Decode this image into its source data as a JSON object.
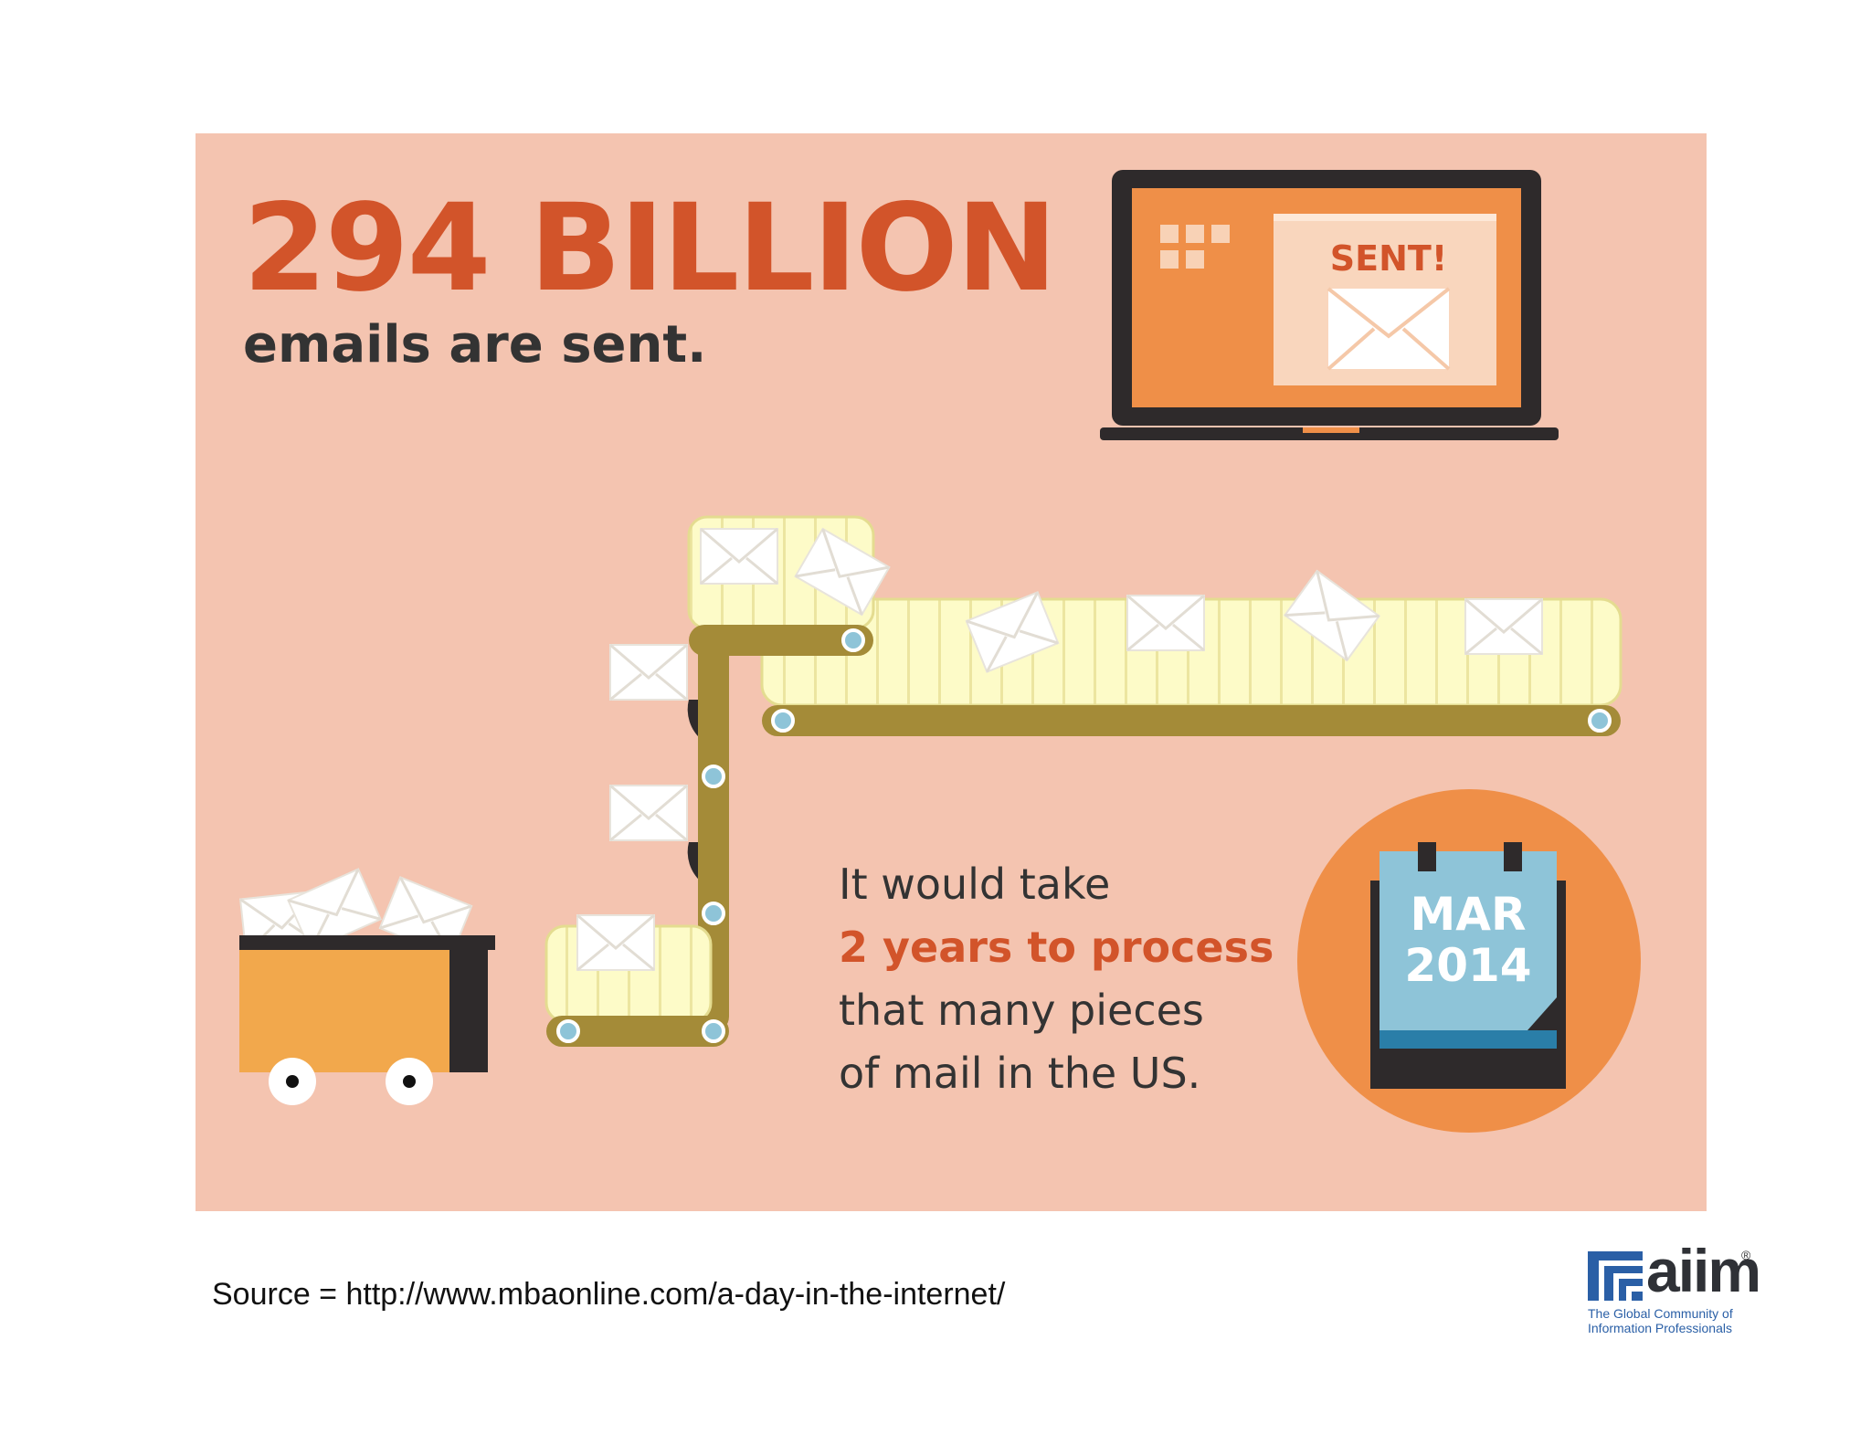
{
  "infographic": {
    "headline": "294 BILLION",
    "subline": "emails are sent.",
    "laptop_label": "SENT!",
    "fact_line1": "It would take",
    "fact_highlight": "2 years to process",
    "fact_line3": "that many pieces",
    "fact_line4": "of mail in the US.",
    "calendar_month": "MAR",
    "calendar_year": "2014",
    "colors": {
      "background": "#f4c4b0",
      "accent": "#d2542a",
      "orange": "#ef8f48",
      "belt": "#a48b38",
      "belt_surface": "#fdfbc8",
      "calendar": "#8ec4d8"
    }
  },
  "footer": {
    "source": "Source = http://www.mbaonline.com/a-day-in-the-internet/"
  },
  "logo": {
    "wordmark": "aiim",
    "registered": "®",
    "tagline_line1": "The Global Community of",
    "tagline_line2": "Information Professionals"
  }
}
